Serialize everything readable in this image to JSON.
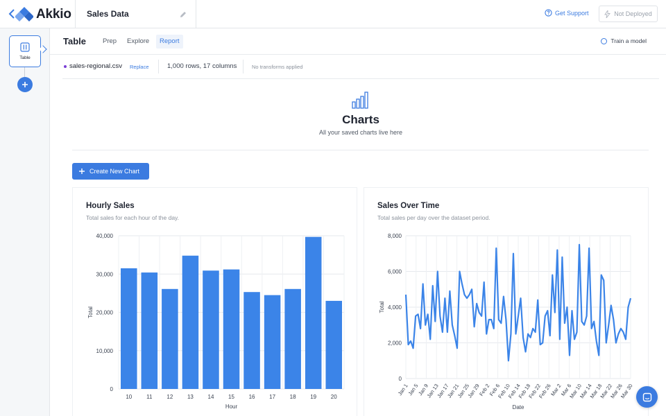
{
  "app": {
    "name": "Akkio",
    "project_title": "Sales Data",
    "accent": "#3b7be0"
  },
  "topbar": {
    "support_label": "Get Support",
    "deploy_status": "Not Deployed"
  },
  "leftrail": {
    "table_card_label": "Table"
  },
  "subheader": {
    "title": "Table",
    "tabs": [
      {
        "label": "Prep",
        "active": false
      },
      {
        "label": "Explore",
        "active": false
      },
      {
        "label": "Report",
        "active": true
      }
    ],
    "train_label": "Train a model"
  },
  "dataset": {
    "name": "sales-regional.csv",
    "replace_label": "Replace",
    "rows_cols": "1,000 rows, 17 columns",
    "transforms": "No transforms applied"
  },
  "hero": {
    "title": "Charts",
    "subtitle": "All your saved charts live here"
  },
  "create_chart_label": "Create New Chart",
  "chart_data": [
    {
      "type": "bar",
      "title": "Hourly Sales",
      "subtitle": "Total sales for each hour of the day.",
      "xlabel": "Hour",
      "ylabel": "Total",
      "categories": [
        "10",
        "11",
        "12",
        "13",
        "14",
        "15",
        "16",
        "17",
        "18",
        "19",
        "20"
      ],
      "values": [
        31500,
        30400,
        26100,
        34800,
        30900,
        31200,
        25300,
        24500,
        26100,
        39700,
        23000
      ],
      "ylim": [
        0,
        40000
      ],
      "yticks": [
        "0",
        "10,000",
        "20,000",
        "30,000",
        "40,000"
      ],
      "ytick_values": [
        0,
        10000,
        20000,
        30000,
        40000
      ],
      "grid": true,
      "color": "#3b84e8"
    },
    {
      "type": "line",
      "title": "Sales Over Time",
      "subtitle": "Total sales per day over the dataset period.",
      "xlabel": "Date",
      "ylabel": "Total",
      "ylim": [
        0,
        8000
      ],
      "yticks": [
        "0",
        "2,000",
        "4,000",
        "6,000",
        "8,000"
      ],
      "ytick_values": [
        0,
        2000,
        4000,
        6000,
        8000
      ],
      "x_ticks": [
        "Jan 1",
        "Jan 5",
        "Jan 9",
        "Jan 13",
        "Jan 17",
        "Jan 21",
        "Jan 25",
        "Jan 29",
        "Feb 2",
        "Feb 6",
        "Feb 10",
        "Feb 14",
        "Feb 18",
        "Feb 22",
        "Feb 26",
        "Mar 2",
        "Mar 6",
        "Mar 10",
        "Mar 14",
        "Mar 18",
        "Mar 22",
        "Mar 26",
        "Mar 30"
      ],
      "values": [
        4700,
        1900,
        2100,
        1700,
        3500,
        3600,
        2800,
        5300,
        3000,
        3600,
        2200,
        5200,
        3200,
        6000,
        3500,
        2600,
        4500,
        2600,
        4900,
        3000,
        2400,
        1700,
        6000,
        5300,
        4700,
        4500,
        4700,
        5000,
        2900,
        4200,
        3700,
        3500,
        5400,
        2500,
        3300,
        3300,
        2800,
        7300,
        3300,
        3100,
        4600,
        3300,
        1000,
        2500,
        7000,
        2500,
        3500,
        4500,
        2300,
        1500,
        2500,
        2300,
        2800,
        2600,
        4400,
        1900,
        2000,
        3500,
        3800,
        2400,
        5800,
        3700,
        7200,
        2200,
        6800,
        3100,
        4000,
        1300,
        3800,
        2200,
        2600,
        7500,
        3200,
        3000,
        3500,
        7300,
        2800,
        3200,
        2100,
        1300,
        5800,
        5500,
        2000,
        3000,
        4100,
        3300,
        2000,
        2500,
        2800,
        2600,
        2200,
        4000,
        4500
      ],
      "grid": true,
      "color": "#3b84e8"
    }
  ]
}
